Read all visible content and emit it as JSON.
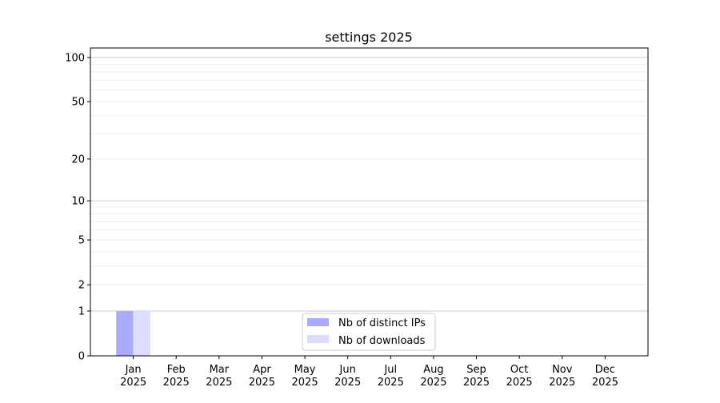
{
  "chart_data": {
    "type": "bar",
    "title": "settings 2025",
    "xlabel": "",
    "ylabel": "",
    "yscale": "log(1+y)",
    "ylim": [
      0,
      116
    ],
    "yticks": [
      0,
      1,
      2,
      5,
      10,
      20,
      50,
      100
    ],
    "grid": "horizontal, major and minor",
    "legend_position": "bottom-center",
    "categories": [
      [
        "Jan",
        "2025"
      ],
      [
        "Feb",
        "2025"
      ],
      [
        "Mar",
        "2025"
      ],
      [
        "Apr",
        "2025"
      ],
      [
        "May",
        "2025"
      ],
      [
        "Jun",
        "2025"
      ],
      [
        "Jul",
        "2025"
      ],
      [
        "Aug",
        "2025"
      ],
      [
        "Sep",
        "2025"
      ],
      [
        "Oct",
        "2025"
      ],
      [
        "Nov",
        "2025"
      ],
      [
        "Dec",
        "2025"
      ]
    ],
    "series": [
      {
        "name": "Nb of distinct IPs",
        "color": "#aaaaff",
        "values": [
          1,
          0,
          0,
          0,
          0,
          0,
          0,
          0,
          0,
          0,
          0,
          0
        ]
      },
      {
        "name": "Nb of downloads",
        "color": "#ddddff",
        "values": [
          1,
          0,
          0,
          0,
          0,
          0,
          0,
          0,
          0,
          0,
          0,
          0
        ]
      }
    ]
  }
}
